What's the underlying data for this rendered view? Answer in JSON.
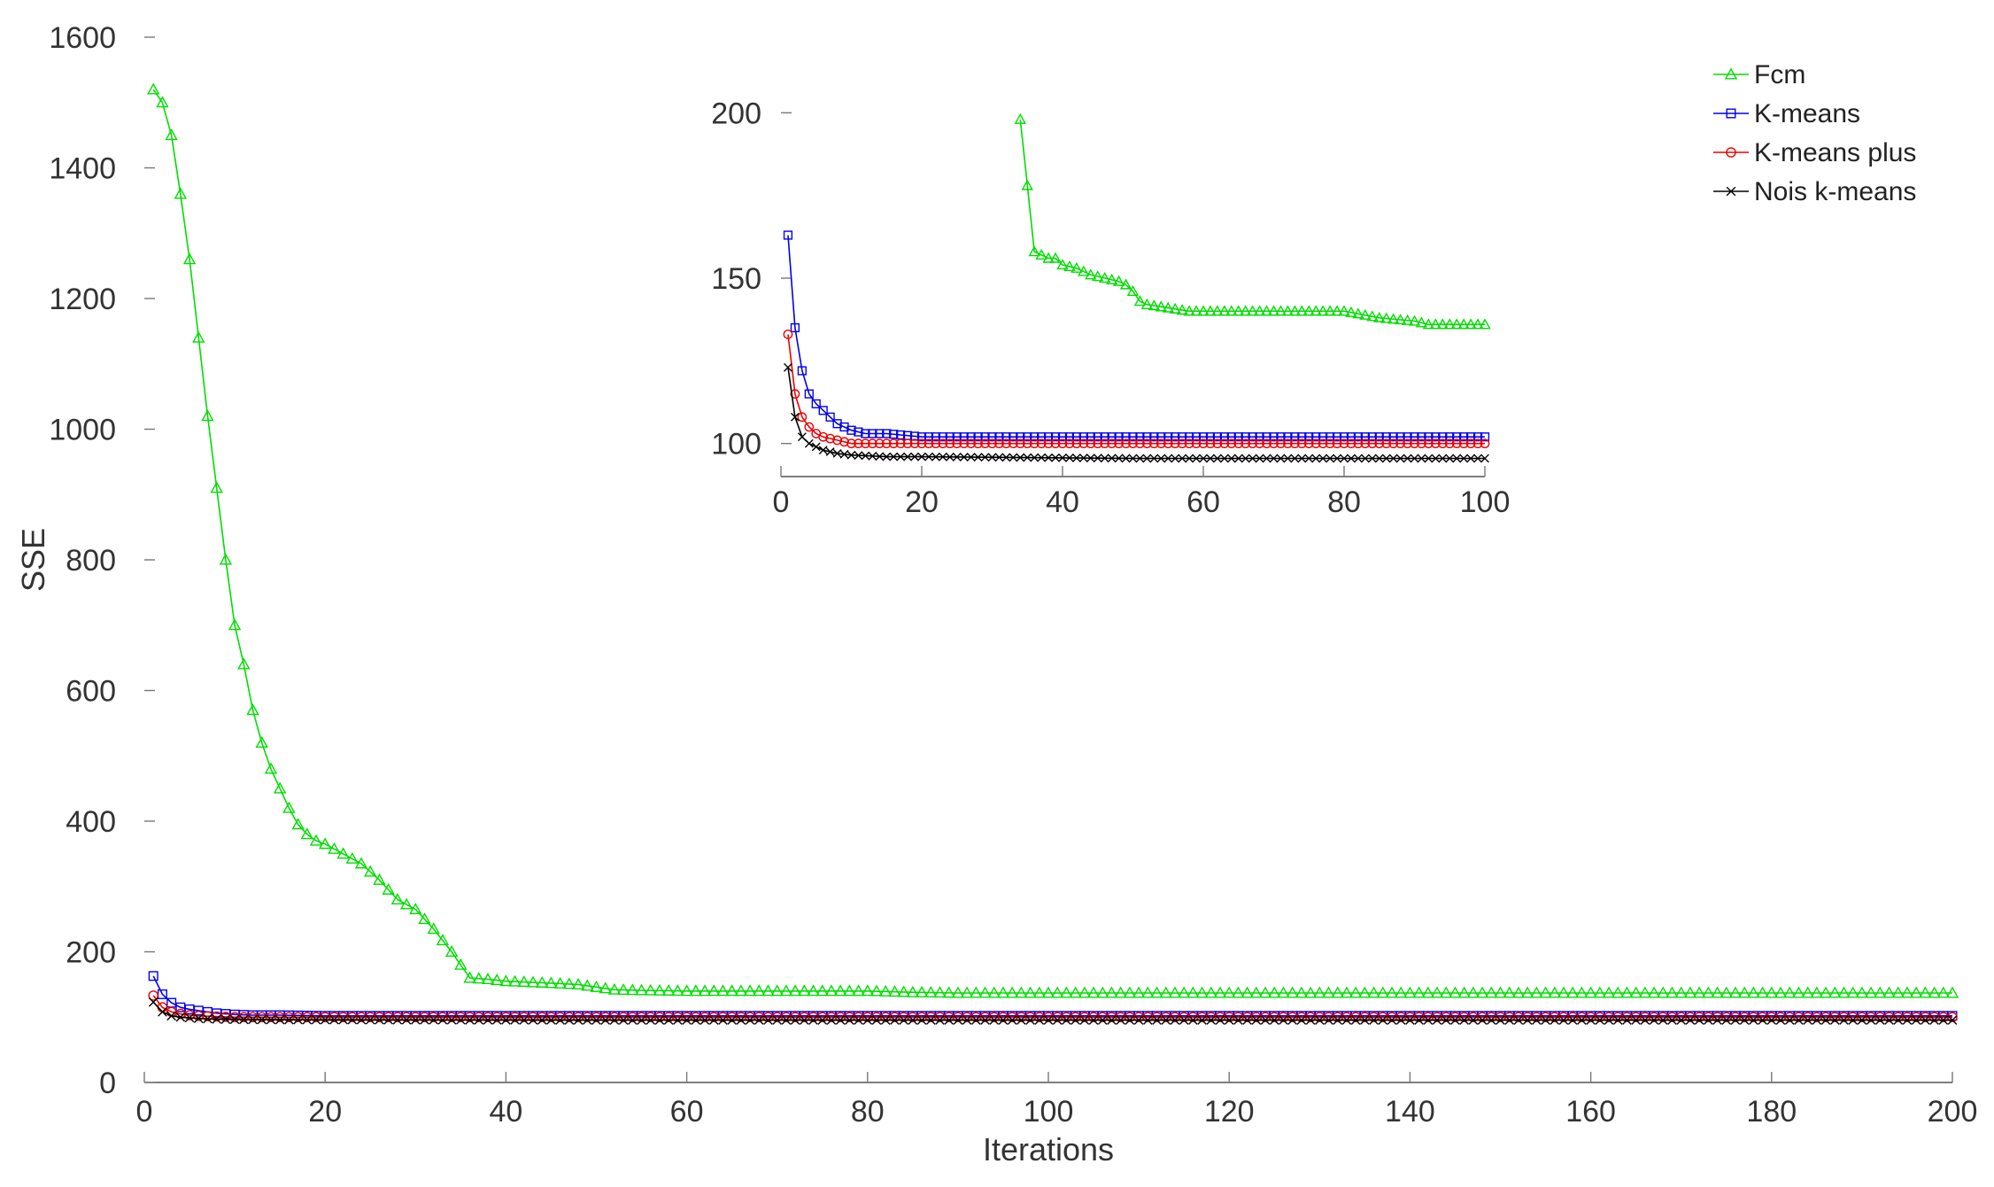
{
  "chart_data": [
    {
      "type": "line",
      "role": "main",
      "xlabel": "Iterations",
      "ylabel": "SSE",
      "xlim": [
        0,
        200
      ],
      "ylim": [
        0,
        1600
      ],
      "xticks": [
        0,
        20,
        40,
        60,
        80,
        100,
        120,
        140,
        160,
        180,
        200
      ],
      "yticks": [
        0,
        200,
        400,
        600,
        800,
        1000,
        1200,
        1400,
        1600
      ],
      "grid": false,
      "legend_position": "top-right",
      "series": [
        {
          "name": "Fcm",
          "color": "#00dd00",
          "marker": "triangle",
          "points": [
            [
              1,
              1520
            ],
            [
              2,
              1500
            ],
            [
              3,
              1450
            ],
            [
              4,
              1360
            ],
            [
              5,
              1260
            ],
            [
              6,
              1140
            ],
            [
              7,
              1020
            ],
            [
              8,
              910
            ],
            [
              9,
              800
            ],
            [
              10,
              700
            ],
            [
              11,
              640
            ],
            [
              12,
              570
            ],
            [
              13,
              520
            ],
            [
              14,
              480
            ],
            [
              15,
              450
            ],
            [
              16,
              420
            ],
            [
              17,
              395
            ],
            [
              18,
              380
            ],
            [
              19,
              370
            ],
            [
              20,
              365
            ],
            [
              22,
              350
            ],
            [
              24,
              335
            ],
            [
              26,
              310
            ],
            [
              28,
              280
            ],
            [
              30,
              265
            ],
            [
              32,
              235
            ],
            [
              34,
              200
            ],
            [
              35,
              180
            ],
            [
              36,
              160
            ],
            [
              38,
              158
            ],
            [
              40,
              155
            ],
            [
              45,
              152
            ],
            [
              48,
              150
            ],
            [
              50,
              146
            ],
            [
              52,
              142
            ],
            [
              55,
              141
            ],
            [
              60,
              140
            ],
            [
              70,
              140
            ],
            [
              80,
              140
            ],
            [
              85,
              138
            ],
            [
              90,
              137
            ],
            [
              100,
              137
            ],
            [
              120,
              137
            ],
            [
              140,
              137
            ],
            [
              160,
              137
            ],
            [
              180,
              137
            ],
            [
              200,
              137
            ]
          ]
        },
        {
          "name": "K-means",
          "color": "#0000ee",
          "marker": "square",
          "points": [
            [
              1,
              163
            ],
            [
              2,
              135
            ],
            [
              3,
              122
            ],
            [
              4,
              115
            ],
            [
              5,
              112
            ],
            [
              6,
              110
            ],
            [
              8,
              106
            ],
            [
              10,
              104
            ],
            [
              12,
              103
            ],
            [
              15,
              103
            ],
            [
              20,
              102
            ],
            [
              30,
              102
            ],
            [
              50,
              102
            ],
            [
              100,
              102
            ],
            [
              150,
              102
            ],
            [
              200,
              102
            ]
          ]
        },
        {
          "name": "K-means plus",
          "color": "#ee0000",
          "marker": "circle",
          "points": [
            [
              1,
              133
            ],
            [
              2,
              115
            ],
            [
              3,
              108
            ],
            [
              4,
              105
            ],
            [
              5,
              103
            ],
            [
              6,
              102
            ],
            [
              8,
              101
            ],
            [
              10,
              100
            ],
            [
              15,
              100
            ],
            [
              20,
              100
            ],
            [
              50,
              100
            ],
            [
              100,
              100
            ],
            [
              150,
              100
            ],
            [
              200,
              100
            ]
          ]
        },
        {
          "name": "Nois k-means",
          "color": "#000000",
          "marker": "x",
          "points": [
            [
              1,
              123
            ],
            [
              2,
              108
            ],
            [
              3,
              102
            ],
            [
              4,
              100
            ],
            [
              5,
              99
            ],
            [
              6,
              98
            ],
            [
              8,
              97
            ],
            [
              10,
              96.5
            ],
            [
              15,
              96
            ],
            [
              20,
              96
            ],
            [
              50,
              95.5
            ],
            [
              100,
              95.5
            ],
            [
              150,
              95.5
            ],
            [
              200,
              95.5
            ]
          ]
        }
      ]
    },
    {
      "type": "line",
      "role": "inset",
      "xlim": [
        0,
        100
      ],
      "ylim": [
        90,
        210
      ],
      "xticks": [
        0,
        20,
        40,
        60,
        80,
        100
      ],
      "yticks": [
        100,
        150,
        200
      ],
      "grid": false,
      "series": [
        {
          "name": "Fcm",
          "color": "#00dd00",
          "marker": "triangle",
          "points": [
            [
              34,
              198
            ],
            [
              35,
              178
            ],
            [
              36,
              158
            ],
            [
              37,
              157
            ],
            [
              38,
              156
            ],
            [
              39,
              156
            ],
            [
              40,
              154
            ],
            [
              42,
              153
            ],
            [
              44,
              151
            ],
            [
              46,
              150
            ],
            [
              48,
              149
            ],
            [
              49,
              148
            ],
            [
              50,
              146
            ],
            [
              51,
              143
            ],
            [
              52,
              142
            ],
            [
              55,
              141
            ],
            [
              58,
              140
            ],
            [
              60,
              140
            ],
            [
              70,
              140
            ],
            [
              80,
              140
            ],
            [
              85,
              138
            ],
            [
              90,
              137
            ],
            [
              92,
              136
            ],
            [
              95,
              136
            ],
            [
              100,
              136
            ]
          ]
        },
        {
          "name": "K-means",
          "color": "#0000ee",
          "marker": "square",
          "points": [
            [
              1,
              163
            ],
            [
              2,
              135
            ],
            [
              3,
              122
            ],
            [
              4,
              115
            ],
            [
              5,
              112
            ],
            [
              6,
              110
            ],
            [
              8,
              106
            ],
            [
              10,
              104
            ],
            [
              12,
              103
            ],
            [
              15,
              103
            ],
            [
              20,
              102
            ],
            [
              30,
              102
            ],
            [
              50,
              102
            ],
            [
              70,
              102
            ],
            [
              100,
              102
            ]
          ]
        },
        {
          "name": "K-means plus",
          "color": "#ee0000",
          "marker": "circle",
          "points": [
            [
              1,
              133
            ],
            [
              2,
              115
            ],
            [
              3,
              108
            ],
            [
              4,
              105
            ],
            [
              5,
              103
            ],
            [
              6,
              102
            ],
            [
              8,
              101
            ],
            [
              10,
              100
            ],
            [
              15,
              100
            ],
            [
              20,
              100
            ],
            [
              50,
              100
            ],
            [
              70,
              100
            ],
            [
              100,
              100
            ]
          ]
        },
        {
          "name": "Nois k-means",
          "color": "#000000",
          "marker": "x",
          "points": [
            [
              1,
              123
            ],
            [
              2,
              108
            ],
            [
              3,
              102
            ],
            [
              4,
              100
            ],
            [
              5,
              99
            ],
            [
              6,
              98
            ],
            [
              8,
              97
            ],
            [
              10,
              96.5
            ],
            [
              15,
              96
            ],
            [
              20,
              96
            ],
            [
              50,
              95.5
            ],
            [
              70,
              95.5
            ],
            [
              100,
              95.5
            ]
          ]
        }
      ]
    }
  ]
}
